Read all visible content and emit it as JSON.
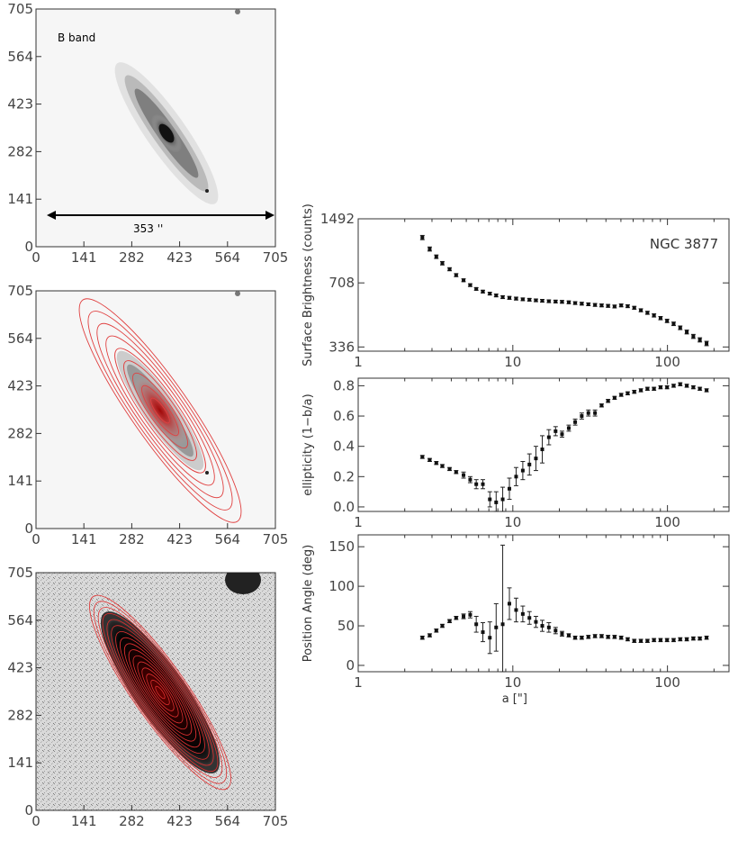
{
  "chart_data": [
    {
      "type": "image",
      "panel": "top-left",
      "label": "B band",
      "scale_annotation": "353 ''",
      "x_ticks": [
        "0",
        "141",
        "282",
        "423",
        "564",
        "705"
      ],
      "y_ticks": [
        "0",
        "141",
        "282",
        "423",
        "564",
        "705"
      ],
      "xlim": [
        0,
        705
      ],
      "ylim": [
        0,
        705
      ]
    },
    {
      "type": "image",
      "panel": "middle-left",
      "overlay": "model isophote ellipses (red)",
      "x_ticks": [
        "0",
        "141",
        "282",
        "423",
        "564",
        "705"
      ],
      "y_ticks": [
        "0",
        "141",
        "282",
        "423",
        "564",
        "705"
      ],
      "xlim": [
        0,
        705
      ],
      "ylim": [
        0,
        705
      ]
    },
    {
      "type": "image",
      "panel": "bottom-left",
      "overlay": "model isophote ellipses (red), high contrast",
      "x_ticks": [
        "0",
        "141",
        "282",
        "423",
        "564",
        "705"
      ],
      "y_ticks": [
        "0",
        "141",
        "282",
        "423",
        "564",
        "705"
      ],
      "xlim": [
        0,
        705
      ],
      "ylim": [
        0,
        705
      ]
    },
    {
      "type": "scatter",
      "panel": "right-top",
      "title": "NGC 3877",
      "ylabel": "Surface Brightness (counts)",
      "xscale": "log",
      "xlim": [
        1,
        250
      ],
      "yscale": "log",
      "ylim": [
        320,
        1492
      ],
      "y_ticks": [
        "336",
        "708",
        "1492"
      ],
      "x_ticks": [
        "1",
        "10",
        "100"
      ],
      "x": [
        2.6,
        2.9,
        3.2,
        3.5,
        3.9,
        4.3,
        4.8,
        5.3,
        5.8,
        6.4,
        7.1,
        7.8,
        8.6,
        9.5,
        10.5,
        11.6,
        12.8,
        14.1,
        15.5,
        17.1,
        18.9,
        20.8,
        23,
        25.3,
        27.9,
        30.8,
        34,
        37.5,
        41.3,
        45.5,
        50.2,
        55.3,
        61,
        67.3,
        74.2,
        81.8,
        90.2,
        99.4,
        109.6,
        120.9,
        133.3,
        147,
        162,
        179
      ],
      "y": [
        1200,
        1050,
        960,
        890,
        830,
        775,
        730,
        690,
        660,
        640,
        625,
        612,
        600,
        595,
        590,
        585,
        582,
        578,
        575,
        572,
        570,
        568,
        565,
        560,
        556,
        552,
        548,
        545,
        542,
        538,
        545,
        540,
        530,
        515,
        500,
        485,
        470,
        455,
        440,
        420,
        400,
        380,
        365,
        350
      ],
      "yerr": [
        30,
        25,
        20,
        18,
        15,
        14,
        12,
        11,
        10,
        10,
        10,
        10,
        10,
        10,
        10,
        9,
        9,
        9,
        9,
        9,
        9,
        9,
        9,
        9,
        9,
        9,
        9,
        9,
        9,
        9,
        9,
        9,
        9,
        9,
        9,
        9,
        9,
        9,
        9,
        9,
        9,
        9,
        9,
        9
      ]
    },
    {
      "type": "scatter",
      "panel": "right-middle",
      "ylabel": "ellipticity (1−b/a)",
      "xscale": "log",
      "xlim": [
        1,
        250
      ],
      "ylim": [
        -0.03,
        0.85
      ],
      "y_ticks": [
        "0.0",
        "0.2",
        "0.4",
        "0.6",
        "0.8"
      ],
      "x_ticks": [
        "1",
        "10",
        "100"
      ],
      "x": [
        2.6,
        2.9,
        3.2,
        3.5,
        3.9,
        4.3,
        4.8,
        5.3,
        5.8,
        6.4,
        7.1,
        7.8,
        8.6,
        9.5,
        10.5,
        11.6,
        12.8,
        14.1,
        15.5,
        17.1,
        18.9,
        20.8,
        23,
        25.3,
        27.9,
        30.8,
        34,
        37.5,
        41.3,
        45.5,
        50.2,
        55.3,
        61,
        67.3,
        74.2,
        81.8,
        90.2,
        99.4,
        109.6,
        120.9,
        133.3,
        147,
        162,
        179
      ],
      "y": [
        0.33,
        0.31,
        0.29,
        0.27,
        0.25,
        0.23,
        0.21,
        0.18,
        0.15,
        0.15,
        0.05,
        0.03,
        0.05,
        0.12,
        0.2,
        0.24,
        0.28,
        0.32,
        0.38,
        0.46,
        0.5,
        0.48,
        0.52,
        0.56,
        0.6,
        0.62,
        0.62,
        0.67,
        0.7,
        0.72,
        0.74,
        0.75,
        0.76,
        0.77,
        0.78,
        0.78,
        0.79,
        0.79,
        0.8,
        0.81,
        0.8,
        0.79,
        0.78,
        0.77
      ],
      "yerr": [
        0.01,
        0.01,
        0.01,
        0.01,
        0.01,
        0.01,
        0.02,
        0.02,
        0.03,
        0.03,
        0.05,
        0.07,
        0.08,
        0.07,
        0.06,
        0.06,
        0.07,
        0.08,
        0.09,
        0.05,
        0.03,
        0.02,
        0.02,
        0.02,
        0.02,
        0.02,
        0.02,
        0.01,
        0.01,
        0.01,
        0.01,
        0.01,
        0.01,
        0.01,
        0.01,
        0.01,
        0.01,
        0.01,
        0.01,
        0.01,
        0.01,
        0.01,
        0.01,
        0.01
      ]
    },
    {
      "type": "scatter",
      "panel": "right-bottom",
      "ylabel": "Position Angle (deg)",
      "xlabel": "a [\"]",
      "xscale": "log",
      "xlim": [
        1,
        250
      ],
      "ylim": [
        -8,
        165
      ],
      "y_ticks": [
        "0",
        "50",
        "100",
        "150"
      ],
      "x_ticks": [
        "1",
        "10",
        "100"
      ],
      "x": [
        2.6,
        2.9,
        3.2,
        3.5,
        3.9,
        4.3,
        4.8,
        5.3,
        5.8,
        6.4,
        7.1,
        7.8,
        8.6,
        9.5,
        10.5,
        11.6,
        12.8,
        14.1,
        15.5,
        17.1,
        18.9,
        20.8,
        23,
        25.3,
        27.9,
        30.8,
        34,
        37.5,
        41.3,
        45.5,
        50.2,
        55.3,
        61,
        67.3,
        74.2,
        81.8,
        90.2,
        99.4,
        109.6,
        120.9,
        133.3,
        147,
        162,
        179
      ],
      "y": [
        35,
        38,
        44,
        50,
        56,
        60,
        62,
        64,
        52,
        42,
        35,
        48,
        52,
        78,
        70,
        65,
        60,
        55,
        50,
        48,
        44,
        40,
        38,
        35,
        35,
        36,
        37,
        37,
        36,
        36,
        35,
        33,
        31,
        31,
        31,
        32,
        32,
        32,
        32,
        33,
        33,
        34,
        34,
        35
      ],
      "yerr": [
        2,
        2,
        2,
        2,
        2,
        2,
        3,
        4,
        10,
        12,
        20,
        30,
        100,
        20,
        15,
        10,
        8,
        7,
        7,
        6,
        4,
        3,
        2,
        2,
        2,
        2,
        2,
        2,
        2,
        2,
        2,
        2,
        2,
        2,
        2,
        2,
        2,
        2,
        2,
        2,
        2,
        2,
        2,
        2
      ]
    }
  ]
}
